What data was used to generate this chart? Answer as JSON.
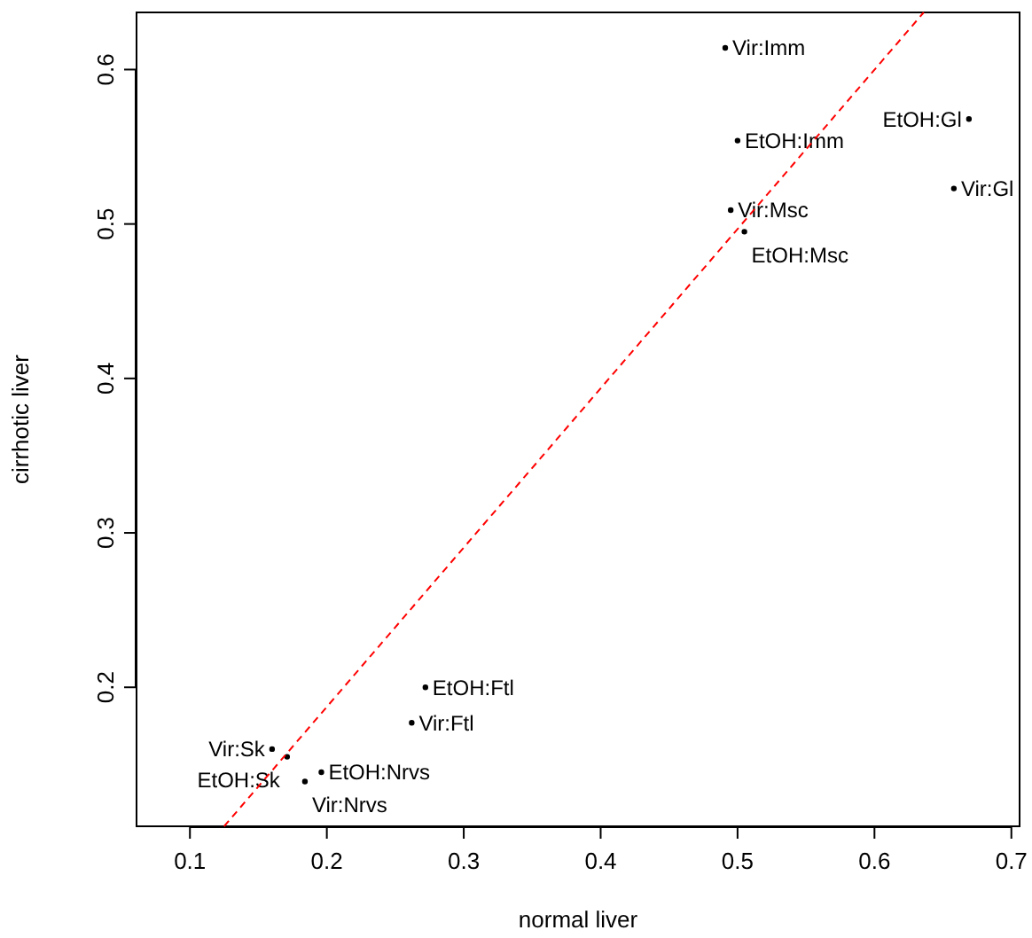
{
  "chart_data": {
    "type": "scatter",
    "xlabel": "normal liver",
    "ylabel": "cirrhotic liver",
    "xlim": [
      0.061,
      0.706
    ],
    "ylim": [
      0.11,
      0.637
    ],
    "xticks": [
      0.1,
      0.2,
      0.3,
      0.4,
      0.5,
      0.6,
      0.7
    ],
    "yticks": [
      0.2,
      0.3,
      0.4,
      0.5,
      0.6
    ],
    "grid": false,
    "series": [
      {
        "marker": "circle",
        "color": "#000000",
        "x": [
          0.491,
          0.5,
          0.495,
          0.505,
          0.669,
          0.658,
          0.272,
          0.262,
          0.16,
          0.171,
          0.196,
          0.184
        ],
        "values": [
          0.614,
          0.554,
          0.509,
          0.495,
          0.568,
          0.523,
          0.2,
          0.177,
          0.16,
          0.155,
          0.145,
          0.139
        ],
        "value_labels": [
          "Vir:Imm",
          "EtOH:Imm",
          "Vir:Msc",
          "EtOH:Msc",
          "EtOH:Gl",
          "Vir:Gl",
          "EtOH:Ftl",
          "Vir:Ftl",
          "Vir:Sk",
          "EtOH:Sk",
          "EtOH:Nrvs",
          "Vir:Nrvs"
        ]
      },
      {
        "type": "line",
        "line_style": "dashed",
        "color": "#ff0000",
        "x": [
          0.125,
          0.636
        ],
        "values": [
          0.11,
          0.637
        ]
      }
    ]
  }
}
